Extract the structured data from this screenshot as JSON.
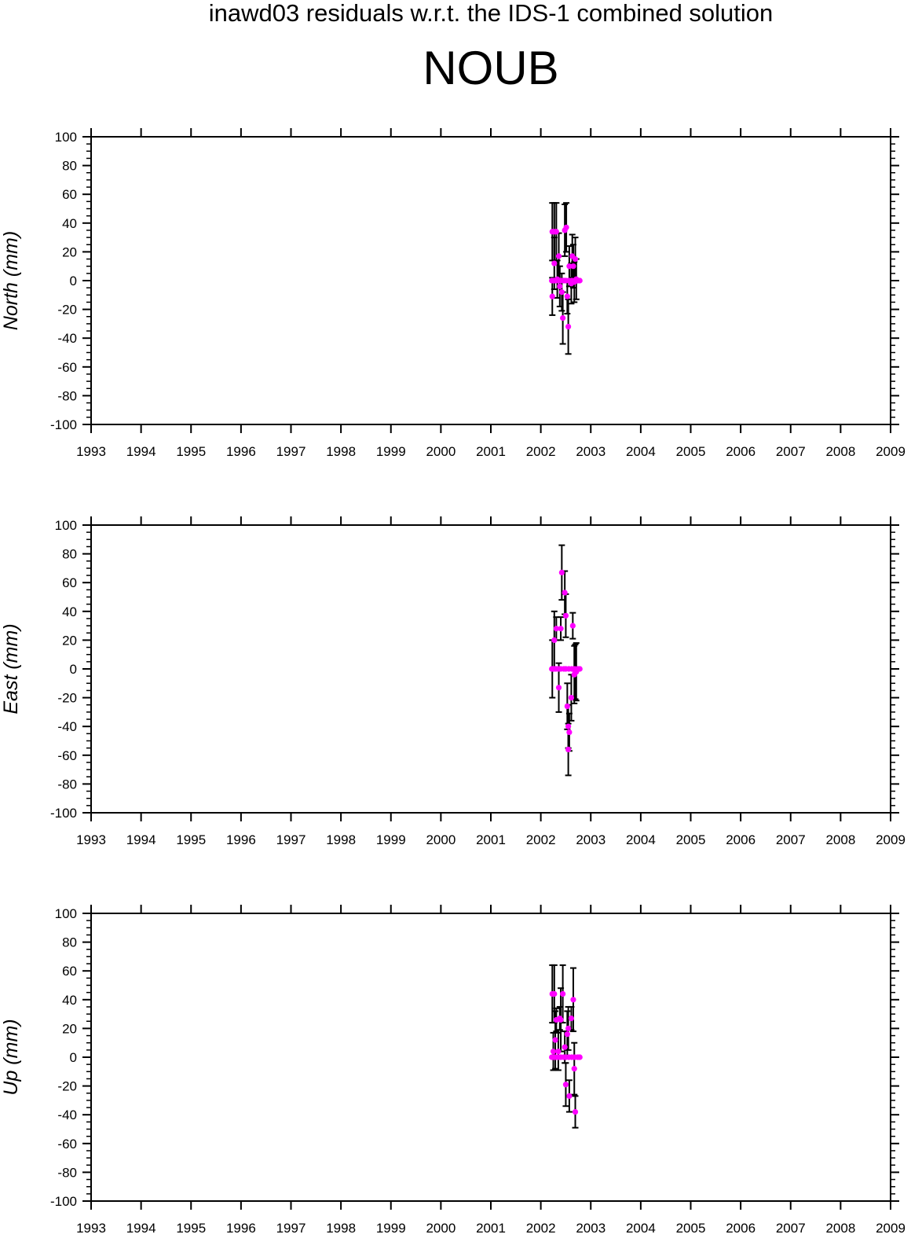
{
  "title": "inawd03 residuals w.r.t. the IDS-1 combined solution",
  "station": "NOUB",
  "colors": {
    "marker": "#ff00ff",
    "errorbar": "#000000",
    "frame": "#000000"
  },
  "chart_data": [
    {
      "type": "scatter",
      "ylabel": "North (mm)",
      "xlim": [
        1993,
        2009
      ],
      "ylim": [
        -100,
        100
      ],
      "xticks": [
        1993,
        1994,
        1995,
        1996,
        1997,
        1998,
        1999,
        2000,
        2001,
        2002,
        2003,
        2004,
        2005,
        2006,
        2007,
        2008,
        2009
      ],
      "yticks": [
        -100,
        -80,
        -60,
        -40,
        -20,
        0,
        20,
        40,
        60,
        80,
        100
      ],
      "grid": false,
      "points": [
        {
          "x": 2002.23,
          "y": 34,
          "err": 20
        },
        {
          "x": 2002.27,
          "y": 34,
          "err": 20
        },
        {
          "x": 2002.31,
          "y": 34,
          "err": 20
        },
        {
          "x": 2002.27,
          "y": 12,
          "err": 18
        },
        {
          "x": 2002.23,
          "y": -11,
          "err": 13
        },
        {
          "x": 2002.33,
          "y": 1,
          "err": 13
        },
        {
          "x": 2002.36,
          "y": 17,
          "err": 16
        },
        {
          "x": 2002.38,
          "y": -4,
          "err": 14
        },
        {
          "x": 2002.42,
          "y": -8,
          "err": 13
        },
        {
          "x": 2002.44,
          "y": -26,
          "err": 18
        },
        {
          "x": 2002.48,
          "y": 35,
          "err": 18
        },
        {
          "x": 2002.51,
          "y": 37,
          "err": 17
        },
        {
          "x": 2002.53,
          "y": -11,
          "err": 12
        },
        {
          "x": 2002.55,
          "y": -32,
          "err": 19
        },
        {
          "x": 2002.57,
          "y": 10,
          "err": 14
        },
        {
          "x": 2002.61,
          "y": -2,
          "err": 14
        },
        {
          "x": 2002.63,
          "y": 17,
          "err": 15
        },
        {
          "x": 2002.65,
          "y": 10,
          "err": 15
        },
        {
          "x": 2002.67,
          "y": -1,
          "err": 14
        },
        {
          "x": 2002.69,
          "y": 15,
          "err": 15
        },
        {
          "x": 2002.71,
          "y": 1,
          "err": 14
        },
        {
          "x": 2002.22,
          "y": 0,
          "err": 0
        },
        {
          "x": 2002.26,
          "y": 0,
          "err": 0
        },
        {
          "x": 2002.3,
          "y": 0,
          "err": 0
        },
        {
          "x": 2002.35,
          "y": 0,
          "err": 0
        },
        {
          "x": 2002.4,
          "y": 0,
          "err": 0
        },
        {
          "x": 2002.46,
          "y": 0,
          "err": 0
        },
        {
          "x": 2002.5,
          "y": 0,
          "err": 0
        },
        {
          "x": 2002.56,
          "y": 0,
          "err": 0
        },
        {
          "x": 2002.62,
          "y": 0,
          "err": 0
        },
        {
          "x": 2002.68,
          "y": 0,
          "err": 0
        },
        {
          "x": 2002.74,
          "y": 0,
          "err": 0
        },
        {
          "x": 2002.78,
          "y": 0,
          "err": 0
        }
      ]
    },
    {
      "type": "scatter",
      "ylabel": "East (mm)",
      "xlim": [
        1993,
        2009
      ],
      "ylim": [
        -100,
        100
      ],
      "xticks": [
        1993,
        1994,
        1995,
        1996,
        1997,
        1998,
        1999,
        2000,
        2001,
        2002,
        2003,
        2004,
        2005,
        2006,
        2007,
        2008,
        2009
      ],
      "yticks": [
        -100,
        -80,
        -60,
        -40,
        -20,
        0,
        20,
        40,
        60,
        80,
        100
      ],
      "grid": false,
      "points": [
        {
          "x": 2002.23,
          "y": 0,
          "err": 20
        },
        {
          "x": 2002.27,
          "y": 20,
          "err": 20
        },
        {
          "x": 2002.31,
          "y": 28,
          "err": 8
        },
        {
          "x": 2002.36,
          "y": -13,
          "err": 17
        },
        {
          "x": 2002.4,
          "y": 28,
          "err": 8
        },
        {
          "x": 2002.42,
          "y": 67,
          "err": 19
        },
        {
          "x": 2002.48,
          "y": 53,
          "err": 15
        },
        {
          "x": 2002.5,
          "y": 37,
          "err": 15
        },
        {
          "x": 2002.53,
          "y": -26,
          "err": 16
        },
        {
          "x": 2002.55,
          "y": -40,
          "err": 15
        },
        {
          "x": 2002.57,
          "y": -44,
          "err": 13
        },
        {
          "x": 2002.55,
          "y": -56,
          "err": 18
        },
        {
          "x": 2002.61,
          "y": -20,
          "err": 16
        },
        {
          "x": 2002.64,
          "y": 30,
          "err": 9
        },
        {
          "x": 2002.67,
          "y": -4,
          "err": 20
        },
        {
          "x": 2002.69,
          "y": -2,
          "err": 19
        },
        {
          "x": 2002.71,
          "y": -2,
          "err": 20
        },
        {
          "x": 2002.22,
          "y": 0,
          "err": 0
        },
        {
          "x": 2002.26,
          "y": 0,
          "err": 0
        },
        {
          "x": 2002.3,
          "y": 0,
          "err": 0
        },
        {
          "x": 2002.35,
          "y": 0,
          "err": 0
        },
        {
          "x": 2002.4,
          "y": 0,
          "err": 0
        },
        {
          "x": 2002.46,
          "y": 0,
          "err": 0
        },
        {
          "x": 2002.5,
          "y": 0,
          "err": 0
        },
        {
          "x": 2002.56,
          "y": 0,
          "err": 0
        },
        {
          "x": 2002.62,
          "y": 0,
          "err": 0
        },
        {
          "x": 2002.68,
          "y": 0,
          "err": 0
        },
        {
          "x": 2002.74,
          "y": 0,
          "err": 0
        },
        {
          "x": 2002.78,
          "y": 0,
          "err": 0
        }
      ]
    },
    {
      "type": "scatter",
      "ylabel": "Up (mm)",
      "xlim": [
        1993,
        2009
      ],
      "ylim": [
        -100,
        100
      ],
      "xticks": [
        1993,
        1994,
        1995,
        1996,
        1997,
        1998,
        1999,
        2000,
        2001,
        2002,
        2003,
        2004,
        2005,
        2006,
        2007,
        2008,
        2009
      ],
      "yticks": [
        -100,
        -80,
        -60,
        -40,
        -20,
        0,
        20,
        40,
        60,
        80,
        100
      ],
      "grid": false,
      "points": [
        {
          "x": 2002.23,
          "y": 44,
          "err": 20
        },
        {
          "x": 2002.27,
          "y": 44,
          "err": 20
        },
        {
          "x": 2002.29,
          "y": 12,
          "err": 20
        },
        {
          "x": 2002.25,
          "y": 4,
          "err": 13
        },
        {
          "x": 2002.31,
          "y": 26,
          "err": 8
        },
        {
          "x": 2002.35,
          "y": 4,
          "err": 13
        },
        {
          "x": 2002.38,
          "y": 27,
          "err": 8
        },
        {
          "x": 2002.4,
          "y": 26,
          "err": 22
        },
        {
          "x": 2002.44,
          "y": 44,
          "err": 20
        },
        {
          "x": 2002.48,
          "y": 7,
          "err": 11
        },
        {
          "x": 2002.5,
          "y": -19,
          "err": 15
        },
        {
          "x": 2002.53,
          "y": 16,
          "err": 16
        },
        {
          "x": 2002.55,
          "y": 20,
          "err": 15
        },
        {
          "x": 2002.57,
          "y": -27,
          "err": 11
        },
        {
          "x": 2002.61,
          "y": 27,
          "err": 8
        },
        {
          "x": 2002.65,
          "y": 40,
          "err": 22
        },
        {
          "x": 2002.67,
          "y": -8,
          "err": 18
        },
        {
          "x": 2002.69,
          "y": -38,
          "err": 11
        },
        {
          "x": 2002.22,
          "y": 0,
          "err": 0
        },
        {
          "x": 2002.26,
          "y": 0,
          "err": 0
        },
        {
          "x": 2002.3,
          "y": 0,
          "err": 0
        },
        {
          "x": 2002.35,
          "y": 0,
          "err": 0
        },
        {
          "x": 2002.4,
          "y": 0,
          "err": 0
        },
        {
          "x": 2002.46,
          "y": 0,
          "err": 0
        },
        {
          "x": 2002.5,
          "y": 0,
          "err": 0
        },
        {
          "x": 2002.56,
          "y": 0,
          "err": 0
        },
        {
          "x": 2002.62,
          "y": 0,
          "err": 0
        },
        {
          "x": 2002.68,
          "y": 0,
          "err": 0
        },
        {
          "x": 2002.74,
          "y": 0,
          "err": 0
        },
        {
          "x": 2002.78,
          "y": 0,
          "err": 0
        }
      ]
    }
  ]
}
